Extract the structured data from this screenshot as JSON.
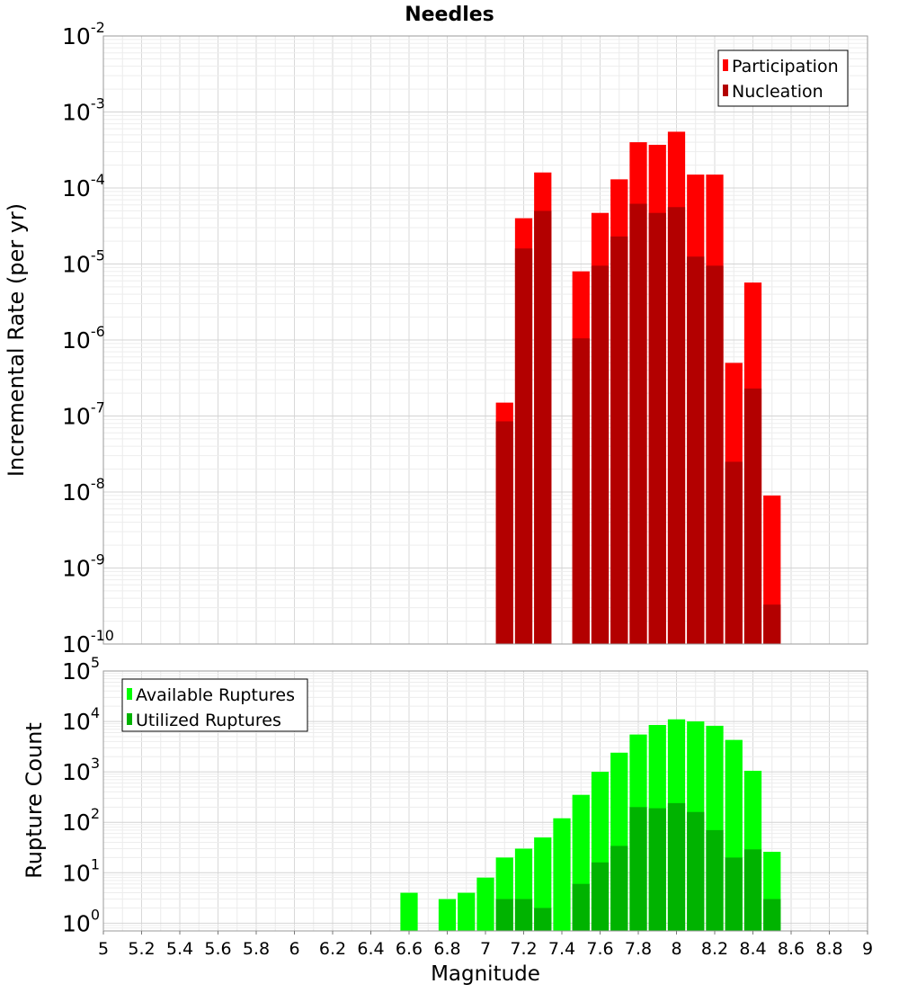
{
  "chart_data": [
    {
      "type": "bar",
      "title": "Needles",
      "xlabel": "",
      "ylabel": "Incremental Rate (per yr)",
      "yscale": "log",
      "ylim": [
        1e-10,
        0.01
      ],
      "xlim": [
        5,
        9
      ],
      "bar_width": 0.1,
      "grid": true,
      "legend_position": "top-right",
      "y_ticks": [
        {
          "base": "10",
          "exp": "-10"
        },
        {
          "base": "10",
          "exp": "-9"
        },
        {
          "base": "10",
          "exp": "-8"
        },
        {
          "base": "10",
          "exp": "-7"
        },
        {
          "base": "10",
          "exp": "-6"
        },
        {
          "base": "10",
          "exp": "-5"
        },
        {
          "base": "10",
          "exp": "-4"
        },
        {
          "base": "10",
          "exp": "-3"
        },
        {
          "base": "10",
          "exp": "-2"
        }
      ],
      "x": [
        7.1,
        7.2,
        7.3,
        7.5,
        7.6,
        7.7,
        7.8,
        7.9,
        8.0,
        8.1,
        8.2,
        8.3,
        8.4,
        8.5
      ],
      "series": [
        {
          "name": "Participation",
          "color": "#ff0000",
          "values": [
            1.5e-07,
            4e-05,
            0.00016,
            8e-06,
            4.7e-05,
            0.00013,
            0.0004,
            0.00037,
            0.00055,
            0.00015,
            0.00015,
            5e-07,
            5.7e-06,
            9e-09
          ]
        },
        {
          "name": "Nucleation",
          "color": "#b30000",
          "values": [
            8.5e-08,
            1.6e-05,
            5e-05,
            1.05e-06,
            9.5e-06,
            2.3e-05,
            6.2e-05,
            4.7e-05,
            5.6e-05,
            1.25e-05,
            9.5e-06,
            2.5e-08,
            2.3e-07,
            3.3e-10
          ]
        }
      ]
    },
    {
      "type": "bar",
      "title": "",
      "xlabel": "Magnitude",
      "ylabel": "Rupture Count",
      "yscale": "log",
      "ylim": [
        0.7,
        100000.0
      ],
      "xlim": [
        5,
        9
      ],
      "bar_width": 0.1,
      "grid": true,
      "legend_position": "top-left",
      "y_ticks": [
        {
          "base": "10",
          "exp": "0"
        },
        {
          "base": "10",
          "exp": "1"
        },
        {
          "base": "10",
          "exp": "2"
        },
        {
          "base": "10",
          "exp": "3"
        },
        {
          "base": "10",
          "exp": "4"
        },
        {
          "base": "10",
          "exp": "5"
        }
      ],
      "x_tick_labels": [
        "5",
        "5.2",
        "5.4",
        "5.6",
        "5.8",
        "6",
        "6.2",
        "6.4",
        "6.6",
        "6.8",
        "7",
        "7.2",
        "7.4",
        "7.6",
        "7.8",
        "8",
        "8.2",
        "8.4",
        "8.6",
        "8.8",
        "9"
      ],
      "x": [
        6.6,
        6.8,
        6.9,
        7.0,
        7.1,
        7.2,
        7.3,
        7.4,
        7.5,
        7.6,
        7.7,
        7.8,
        7.9,
        8.0,
        8.1,
        8.2,
        8.3,
        8.4,
        8.5
      ],
      "series": [
        {
          "name": "Available Ruptures",
          "color": "#00ff00",
          "values": [
            4,
            3,
            4,
            8,
            20,
            30,
            50,
            120,
            350,
            1000,
            2400,
            5500,
            8500,
            11000,
            10000,
            8200,
            4300,
            1050,
            26
          ]
        },
        {
          "name": "Utilized Ruptures",
          "color": "#00b300",
          "values": [
            null,
            null,
            null,
            null,
            3,
            3,
            2,
            null,
            6,
            16,
            34,
            200,
            190,
            240,
            160,
            70,
            20,
            29,
            3
          ]
        }
      ]
    }
  ]
}
